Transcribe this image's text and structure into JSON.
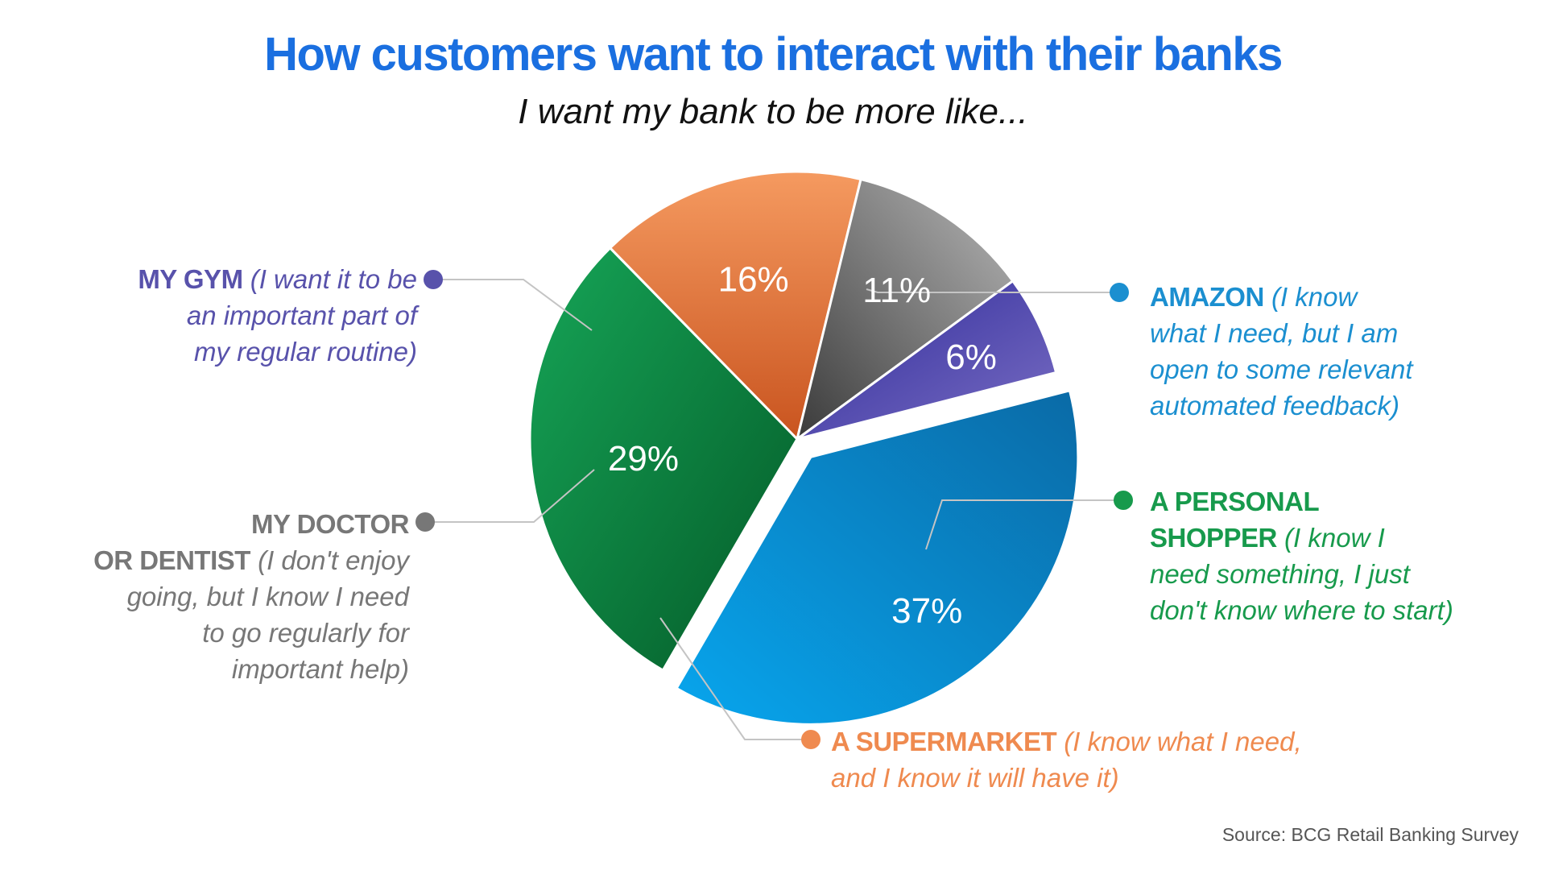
{
  "title": "How customers want to interact with their banks",
  "subtitle": "I want my bank to be more like...",
  "source": "Source: BCG Retail Banking Survey",
  "chart_data": {
    "type": "pie",
    "title": "How customers want to interact with their banks",
    "subtitle": "I want my bank to be more like...",
    "slices": [
      {
        "name": "AMAZON",
        "value": 37,
        "label": "37%",
        "description": "(I know what I need, but I am open to some relevant automated feedback)",
        "color": "#0a8fd8"
      },
      {
        "name": "A PERSONAL SHOPPER",
        "value": 29,
        "label": "29%",
        "description": "(I know I need something, I just don't know where to start)",
        "color": "#0f944a"
      },
      {
        "name": "A SUPERMARKET",
        "value": 16,
        "label": "16%",
        "description": "(I know what I need, and I know it will have it)",
        "color": "#e8773f"
      },
      {
        "name": "MY DOCTOR OR DENTIST",
        "value": 11,
        "label": "11%",
        "description": "(I don't enjoy going, but I know I need to go regularly for important help)",
        "color": "#777777"
      },
      {
        "name": "MY GYM",
        "value": 6,
        "label": "6%",
        "description": "(I want it to be an important part of my regular routine)",
        "color": "#4e4aad"
      }
    ],
    "exploded_slice": "AMAZON"
  },
  "callouts": {
    "amazon": {
      "name": "AMAZON",
      "line1": "(I know",
      "line2": "what I need, but I am",
      "line3": "open to some relevant",
      "line4": "automated feedback)",
      "color": "#1b8fd0"
    },
    "shopper": {
      "name1": "A PERSONAL",
      "name2": "SHOPPER",
      "line1": "(I know I",
      "line2": "need something, I just",
      "line3": "don't know where to start)",
      "color": "#179a4c"
    },
    "supermarket": {
      "name": "A SUPERMARKET",
      "line1": "(I know what I need,",
      "line2": "and I know it will have it)",
      "color": "#ef8a4f"
    },
    "doctor": {
      "name1": "MY DOCTOR",
      "name2": "OR DENTIST",
      "line1": "(I don't enjoy",
      "line2": "going, but I know I need",
      "line3": "to go regularly for",
      "line4": "important help)",
      "color": "#777777"
    },
    "gym": {
      "name": "MY GYM",
      "line1": "(I want it to be",
      "line2": "an important part of",
      "line3": "my regular routine)",
      "color": "#5852ab"
    }
  }
}
